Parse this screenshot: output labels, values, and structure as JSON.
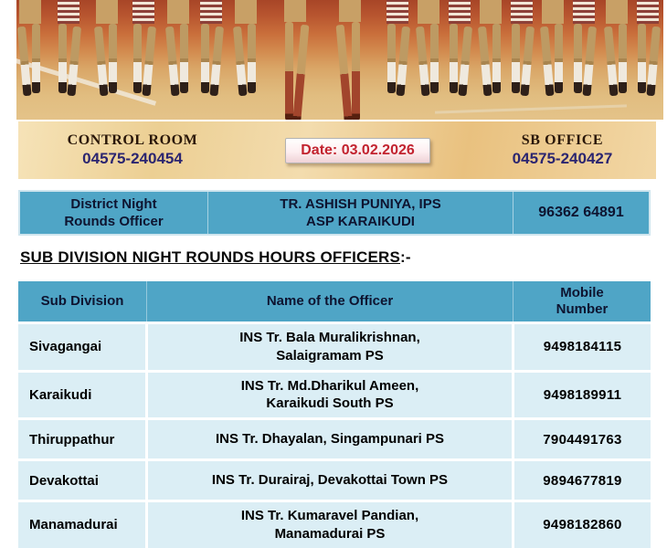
{
  "top_bar": {
    "control_room_label": "CONTROL ROOM",
    "control_room_phone": "04575-240454",
    "date_label": "Date: 03.02.2026",
    "sb_office_label": "SB OFFICE",
    "sb_office_phone": "04575-240427"
  },
  "district_officer": {
    "role_line1": "District Night",
    "role_line2": "Rounds Officer",
    "name_line1": "TR. ASHISH PUNIYA, IPS",
    "name_line2": "ASP KARAIKUDI",
    "mobile": "96362 64891"
  },
  "section_heading": "SUB DIVISION NIGHT ROUNDS HOURS OFFICERS",
  "section_heading_suffix": ":-",
  "table": {
    "headers": [
      "Sub Division",
      "Name of the Officer",
      "Mobile Number"
    ],
    "rows": [
      {
        "sub_division": "Sivagangai",
        "officer_line1": "INS Tr. Bala Muralikrishnan,",
        "officer_line2": "Salaigramam PS",
        "mobile": "9498184115"
      },
      {
        "sub_division": "Karaikudi",
        "officer_line1": "INS Tr. Md.Dharikul Ameen,",
        "officer_line2": "Karaikudi South PS",
        "mobile": "9498189911"
      },
      {
        "sub_division": "Thiruppathur",
        "officer_line1": "INS Tr. Dhayalan, Singampunari PS",
        "officer_line2": "",
        "mobile": "7904491763"
      },
      {
        "sub_division": "Devakottai",
        "officer_line1": "INS Tr. Durairaj, Devakottai Town PS",
        "officer_line2": "",
        "mobile": "9894677819"
      },
      {
        "sub_division": "Manamadurai",
        "officer_line1": "INS Tr. Kumaravel Pandian,",
        "officer_line2": "Manamadurai PS",
        "mobile": "9498182860"
      }
    ]
  },
  "colors": {
    "table_header_blue": "#4fa5c6",
    "table_row_blue": "#dbeef5",
    "band_tan": "#f0d49f",
    "date_red": "#c2232f",
    "phone_indigo": "#2b2570"
  }
}
